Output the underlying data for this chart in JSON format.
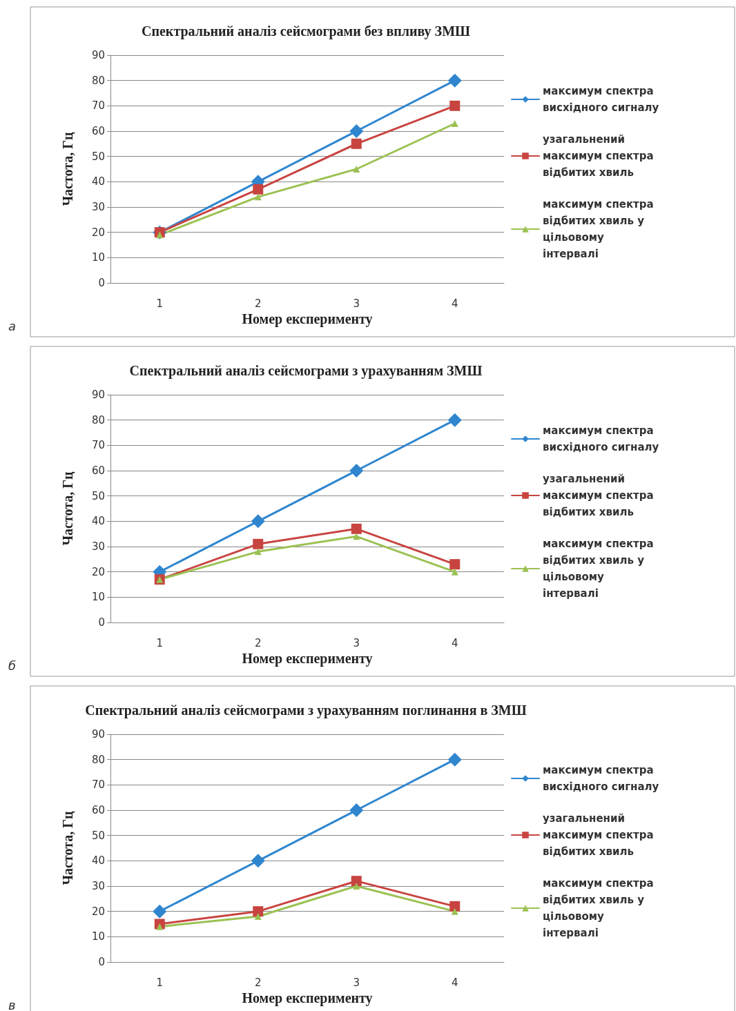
{
  "chart_data": [
    {
      "type": "line",
      "title": "Спектральний аналіз сейсмограми без впливу ЗМШ",
      "xlabel": "Номер експерименту",
      "ylabel": "Частота, Гц",
      "annotations": [
        "а"
      ],
      "categories": [
        "1",
        "2",
        "3",
        "4"
      ],
      "ylim": [
        0,
        90
      ],
      "yticks": [
        0,
        10,
        20,
        30,
        40,
        50,
        60,
        70,
        80,
        90
      ],
      "grid": "y",
      "legend": "right",
      "series": [
        {
          "name": "максимум спектра висхідного сигналу",
          "color": "#2f86cf",
          "marker": "diamond",
          "values": [
            20,
            40,
            60,
            80
          ]
        },
        {
          "name": "узагальнений максимум спектра відбитих хвиль",
          "color": "#c84440",
          "marker": "square",
          "values": [
            20,
            37,
            55,
            70
          ]
        },
        {
          "name": "максимум спектра відбитих хвиль у цільовому інтервалі",
          "color": "#9bc152",
          "marker": "triangle",
          "values": [
            19,
            34,
            45,
            63
          ]
        }
      ]
    },
    {
      "type": "line",
      "title": "Спектральний аналіз сейсмограми з урахуванням ЗМШ",
      "xlabel": "Номер експерименту",
      "ylabel": "Частота, Гц",
      "annotations": [
        "б"
      ],
      "categories": [
        "1",
        "2",
        "3",
        "4"
      ],
      "ylim": [
        0,
        90
      ],
      "yticks": [
        0,
        10,
        20,
        30,
        40,
        50,
        60,
        70,
        80,
        90
      ],
      "grid": "y",
      "legend": "right",
      "series": [
        {
          "name": "максимум спектра висхідного сигналу",
          "color": "#2f86cf",
          "marker": "diamond",
          "values": [
            20,
            40,
            60,
            80
          ]
        },
        {
          "name": "узагальнений максимум спектра відбитих хвиль",
          "color": "#c84440",
          "marker": "square",
          "values": [
            17,
            31,
            37,
            23
          ]
        },
        {
          "name": "максимум спектра відбитих хвиль у цільовому інтервалі",
          "color": "#9bc152",
          "marker": "triangle",
          "values": [
            17,
            28,
            34,
            20
          ]
        }
      ]
    },
    {
      "type": "line",
      "title": "Спектральний аналіз сейсмограми з урахуванням поглинання в ЗМШ",
      "xlabel": "Номер експерименту",
      "ylabel": "Частота, Гц",
      "annotations": [
        "в"
      ],
      "categories": [
        "1",
        "2",
        "3",
        "4"
      ],
      "ylim": [
        0,
        90
      ],
      "yticks": [
        0,
        10,
        20,
        30,
        40,
        50,
        60,
        70,
        80,
        90
      ],
      "grid": "y",
      "legend": "right",
      "series": [
        {
          "name": "максимум спектра висхідного сигналу",
          "color": "#2f86cf",
          "marker": "diamond",
          "values": [
            20,
            40,
            60,
            80
          ]
        },
        {
          "name": "узагальнений максимум спектра відбитих хвиль",
          "color": "#c84440",
          "marker": "square",
          "values": [
            15,
            20,
            32,
            22
          ]
        },
        {
          "name": "максимум спектра відбитих хвиль у цільовому інтервалі",
          "color": "#9bc152",
          "marker": "triangle",
          "values": [
            14,
            18,
            30,
            20
          ]
        }
      ]
    }
  ]
}
